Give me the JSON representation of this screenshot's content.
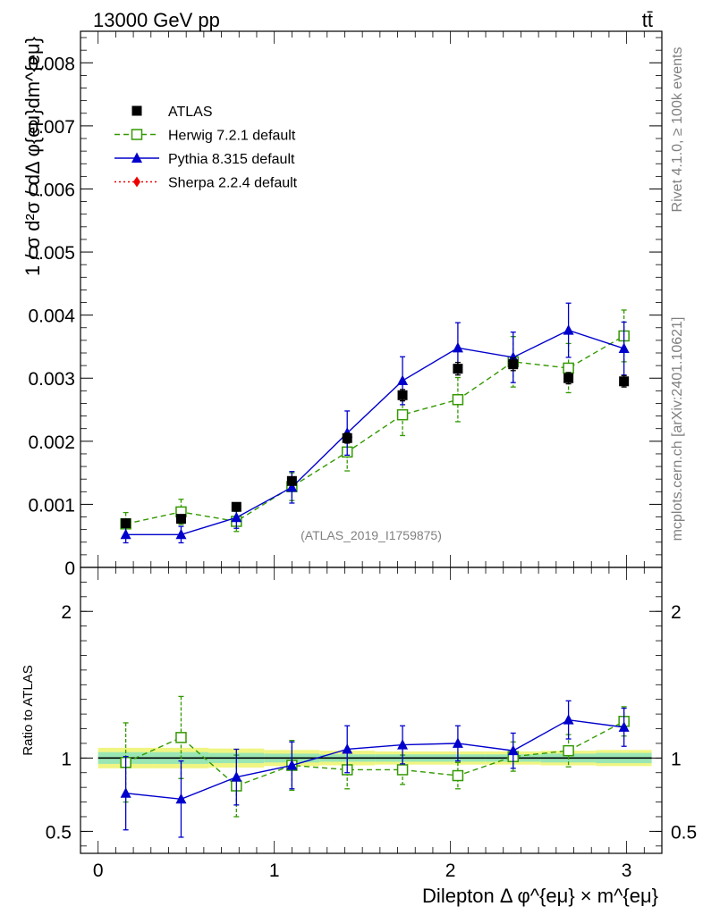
{
  "header": {
    "left_label": "13000 GeV pp",
    "right_label": "tt̄"
  },
  "side_labels": {
    "rivet": "Rivet 4.1.0, ≥ 100k events",
    "mcplots": "mcplots.cern.ch [arXiv:2401.10621]"
  },
  "watermark": "(ATLAS_2019_I1759875)",
  "chart_data": [
    {
      "type": "scatter",
      "panel": "main",
      "ylabel": "1 / σ  d²σ / dΔ φ{eμ}dm^{eμ}",
      "ylim": [
        0,
        0.0085
      ],
      "xlim": [
        -0.1,
        3.2
      ],
      "yticks": [
        0,
        0.001,
        0.002,
        0.003,
        0.004,
        0.005,
        0.006,
        0.007,
        0.008
      ],
      "ytick_labels": [
        "0",
        "0.001",
        "0.002",
        "0.003",
        "0.004",
        "0.005",
        "0.006",
        "0.007",
        "0.008"
      ],
      "x": [
        0.157,
        0.471,
        0.785,
        1.1,
        1.414,
        1.728,
        2.042,
        2.356,
        2.67,
        2.985
      ],
      "legend": [
        {
          "name": "ATLAS",
          "color": "#000000",
          "marker": "square-filled",
          "line": "none"
        },
        {
          "name": "Herwig 7.2.1 default",
          "color": "#339900",
          "marker": "square-open",
          "line": "dashed"
        },
        {
          "name": "Pythia 8.315 default",
          "color": "#0000cc",
          "marker": "triangle",
          "line": "solid"
        },
        {
          "name": "Sherpa 2.2.4 default",
          "color": "#ee0000",
          "marker": "diamond",
          "line": "dotted"
        }
      ],
      "series": [
        {
          "name": "ATLAS",
          "values": [
            0.0007,
            0.00077,
            0.00096,
            0.00137,
            0.00205,
            0.00273,
            0.00315,
            0.00322,
            0.003,
            0.00295
          ],
          "err": [
            4e-05,
            4e-05,
            5e-05,
            6e-05,
            8e-05,
            9e-05,
            0.0001,
            0.0001,
            9e-05,
            9e-05
          ]
        },
        {
          "name": "Herwig 7.2.1 default",
          "values": [
            0.00069,
            0.00088,
            0.00073,
            0.00128,
            0.00183,
            0.00242,
            0.00266,
            0.00326,
            0.00316,
            0.00367
          ],
          "err": [
            0.00018,
            0.0002,
            0.00016,
            0.00022,
            0.0003,
            0.00033,
            0.00035,
            0.0004,
            0.00039,
            0.00041
          ]
        },
        {
          "name": "Pythia 8.315 default",
          "values": [
            0.00052,
            0.00052,
            0.00079,
            0.00127,
            0.00213,
            0.00296,
            0.00348,
            0.00333,
            0.00376,
            0.00347
          ],
          "err": [
            0.00013,
            0.00013,
            0.00017,
            0.00025,
            0.00035,
            0.00038,
            0.0004,
            0.0004,
            0.00043,
            0.00042
          ]
        }
      ]
    },
    {
      "type": "scatter",
      "panel": "ratio",
      "ylabel": "Ratio to ATLAS",
      "xlabel": "Dilepton Δ φ^{eμ} × m^{eμ}",
      "ylim": [
        0.35,
        2.3
      ],
      "xlim": [
        -0.1,
        3.2
      ],
      "xticks": [
        0,
        1,
        2,
        3
      ],
      "xtick_labels": [
        "0",
        "1",
        "2",
        "3"
      ],
      "yticks": [
        0.5,
        1,
        2
      ],
      "ytick_labels": [
        "0.5",
        "1",
        "2"
      ],
      "x": [
        0.157,
        0.471,
        0.785,
        1.1,
        1.414,
        1.728,
        2.042,
        2.356,
        2.67,
        2.985
      ],
      "band_edges": [
        0.0,
        0.314,
        0.628,
        0.942,
        1.257,
        1.571,
        1.885,
        2.199,
        2.513,
        2.827,
        3.142
      ],
      "band_inner": [
        0.04,
        0.04,
        0.035,
        0.03,
        0.025,
        0.025,
        0.025,
        0.025,
        0.03,
        0.035
      ],
      "band_outer": [
        0.07,
        0.07,
        0.065,
        0.055,
        0.05,
        0.045,
        0.045,
        0.045,
        0.05,
        0.055
      ],
      "series": [
        {
          "name": "Herwig 7.2.1 default",
          "values": [
            0.97,
            1.14,
            0.81,
            0.95,
            0.92,
            0.92,
            0.88,
            1.01,
            1.05,
            1.25
          ],
          "err": [
            0.27,
            0.28,
            0.21,
            0.17,
            0.13,
            0.1,
            0.09,
            0.1,
            0.11,
            0.1
          ]
        },
        {
          "name": "Pythia 8.315 default",
          "values": [
            0.76,
            0.72,
            0.87,
            0.95,
            1.06,
            1.09,
            1.1,
            1.05,
            1.26,
            1.21
          ],
          "err": [
            0.25,
            0.26,
            0.19,
            0.16,
            0.16,
            0.13,
            0.12,
            0.12,
            0.13,
            0.13
          ]
        }
      ]
    }
  ]
}
